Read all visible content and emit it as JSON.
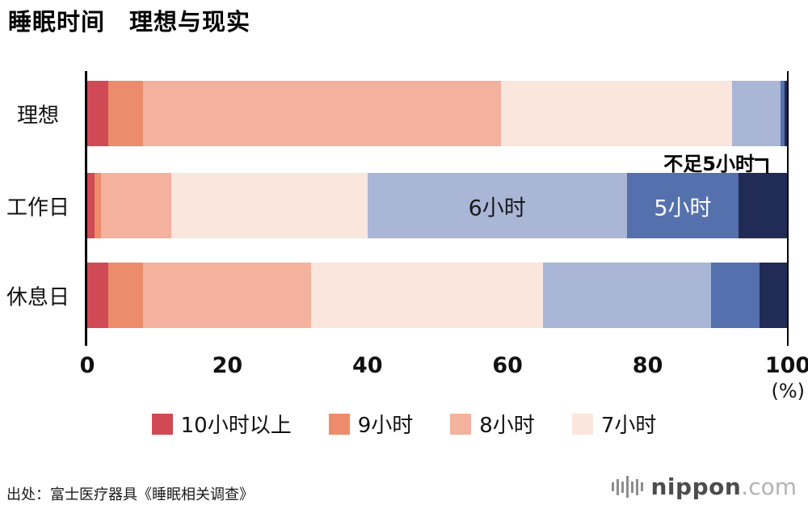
{
  "title": "睡眠时间　理想与现实",
  "chart_data": {
    "type": "bar",
    "orientation": "horizontal",
    "stacked": true,
    "title": "睡眠时间　理想与现实",
    "categories": [
      "理想",
      "工作日",
      "休息日"
    ],
    "series": [
      {
        "name": "10小时以上",
        "color": "#cf4a54",
        "values": [
          3,
          1,
          3
        ]
      },
      {
        "name": "9小时",
        "color": "#ec8c6a",
        "values": [
          5,
          1,
          5
        ]
      },
      {
        "name": "8小时",
        "color": "#f3b19e",
        "values": [
          51,
          10,
          24
        ]
      },
      {
        "name": "7小时",
        "color": "#fae6dd",
        "values": [
          33,
          28,
          33
        ]
      },
      {
        "name": "6小时",
        "color": "#aab6d6",
        "values": [
          7,
          37,
          24
        ]
      },
      {
        "name": "5小时",
        "color": "#5471ae",
        "values": [
          0.5,
          16,
          7
        ]
      },
      {
        "name": "不足5小时",
        "color": "#202c55",
        "values": [
          0.5,
          7,
          4
        ]
      }
    ],
    "xlim": [
      0,
      100
    ],
    "x_ticks": [
      "0",
      "20",
      "40",
      "60",
      "80",
      "100"
    ],
    "x_unit": "(%)",
    "grid": false,
    "legend_position": "bottom",
    "segment_labels": [
      {
        "category": "工作日",
        "series": "6小时",
        "text": "6小时",
        "color": "#1a1a1a"
      },
      {
        "category": "工作日",
        "series": "5小时",
        "text": "5小时",
        "color": "#ffffff"
      }
    ],
    "annotation": {
      "text": "不足5小时",
      "target_category": "工作日",
      "target_series": "不足5小时"
    }
  },
  "legend": [
    {
      "label": "10小时以上",
      "color": "#cf4a54"
    },
    {
      "label": "9小时",
      "color": "#ec8c6a"
    },
    {
      "label": "8小时",
      "color": "#f3b19e"
    },
    {
      "label": "7小时",
      "color": "#fae6dd"
    }
  ],
  "source": "出处：富士医疗器具《睡眠相关调查》",
  "logo": {
    "name": "nippon",
    "suffix": ".com"
  }
}
